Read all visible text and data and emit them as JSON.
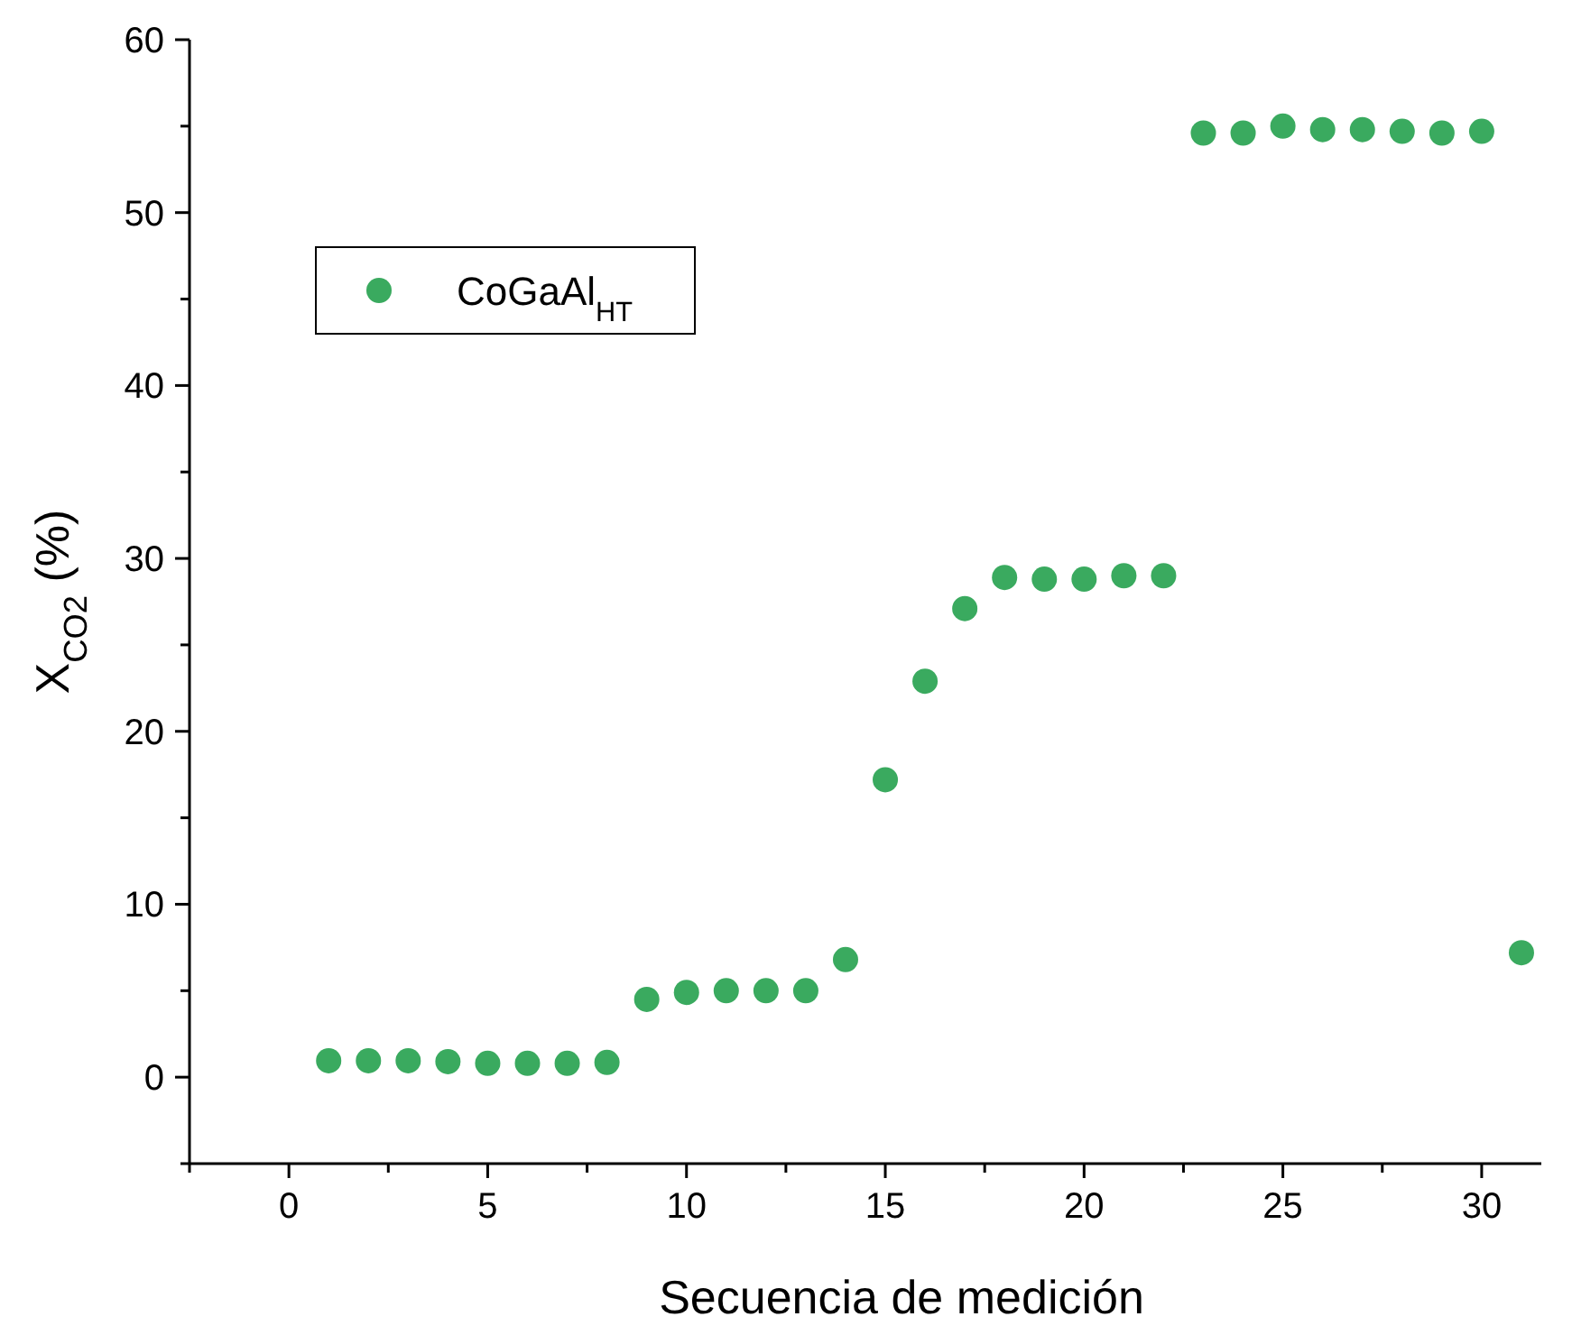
{
  "chart_data": {
    "type": "scatter",
    "xlabel": "Secuencia de medición",
    "ylabel": "X$_{CO2}$ (%)",
    "x": [
      1,
      2,
      3,
      4,
      5,
      6,
      7,
      8,
      9,
      10,
      11,
      12,
      13,
      14,
      15,
      16,
      17,
      18,
      19,
      20,
      21,
      22,
      23,
      24,
      25,
      26,
      27,
      28,
      29,
      30,
      31
    ],
    "series": [
      {
        "name": "CoGaAl$_{HT}$",
        "color": "#3aaa5f",
        "values": [
          0.95,
          0.95,
          0.95,
          0.9,
          0.8,
          0.8,
          0.8,
          0.85,
          4.5,
          4.9,
          5.0,
          5.0,
          5.0,
          6.8,
          17.2,
          22.9,
          27.1,
          28.9,
          28.8,
          28.8,
          29.0,
          29.0,
          54.6,
          54.6,
          55.0,
          54.8,
          54.8,
          54.7,
          54.6,
          54.7,
          7.2
        ]
      }
    ],
    "xlim": [
      -2.5,
      31.5
    ],
    "xticks": [
      0,
      5,
      10,
      15,
      20,
      25,
      30
    ],
    "ylim": [
      -5,
      60
    ],
    "yticks": [
      0,
      10,
      20,
      30,
      40,
      50,
      60
    ],
    "marker": "circle",
    "legend": "top left",
    "grid": false
  }
}
